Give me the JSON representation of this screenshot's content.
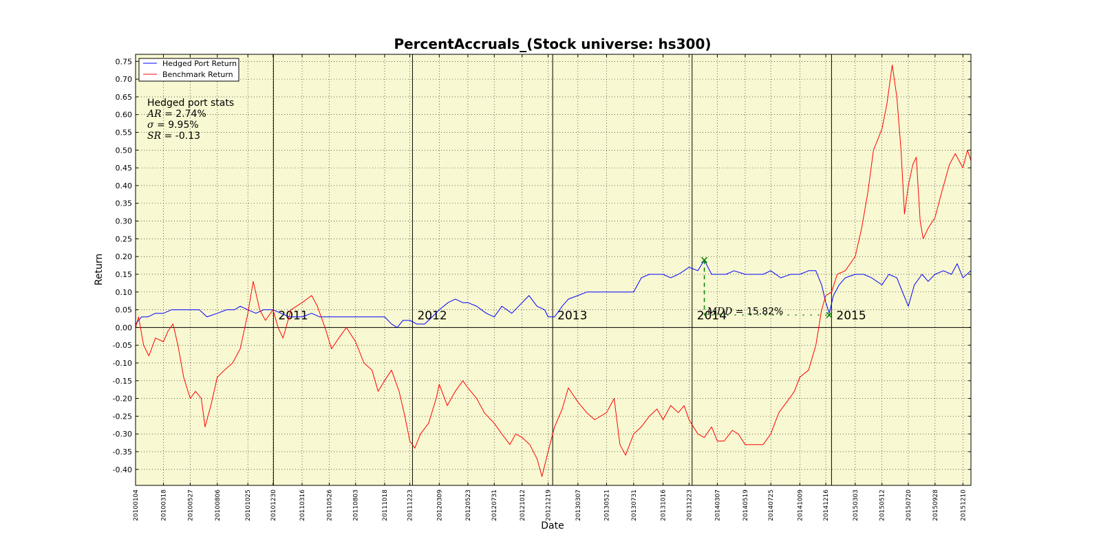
{
  "colors": {
    "plot_bg": "#f8f8d2",
    "hedged": "#0000ff",
    "benchmark": "#ff0000",
    "mdd": "#008000",
    "grid": "#000000"
  },
  "chart_data": {
    "type": "line",
    "title": "PercentAccruals_(Stock universe: hs300)",
    "xlabel": "Date",
    "ylabel": "Return",
    "grid": true,
    "legend_position": "top-left",
    "x_range": [
      "2010-01-04",
      "2015-12-31"
    ],
    "ylim": [
      -0.445,
      0.77
    ],
    "y_ticks": [
      "0.75",
      "0.70",
      "0.65",
      "0.60",
      "0.55",
      "0.50",
      "0.45",
      "0.40",
      "0.35",
      "0.30",
      "0.25",
      "0.20",
      "0.15",
      "0.10",
      "0.05",
      "0.00",
      "-0.05",
      "-0.10",
      "-0.15",
      "-0.20",
      "-0.25",
      "-0.30",
      "-0.35",
      "-0.40"
    ],
    "x_ticks": [
      "20100104",
      "20100318",
      "20100527",
      "20100806",
      "20101025",
      "20101230",
      "20110316",
      "20110526",
      "20110803",
      "20111018",
      "20111223",
      "20120309",
      "20120523",
      "20120731",
      "20121012",
      "20121219",
      "20130307",
      "20130521",
      "20130731",
      "20131016",
      "20131223",
      "20140307",
      "20140519",
      "20140725",
      "20141009",
      "20141216",
      "20150303",
      "20150512",
      "20150720",
      "20150928",
      "20151210"
    ],
    "year_markers": [
      {
        "date": "2010-12-31",
        "label": "2011"
      },
      {
        "date": "2011-12-30",
        "label": "2012"
      },
      {
        "date": "2012-12-31",
        "label": "2013"
      },
      {
        "date": "2013-12-31",
        "label": "2014"
      },
      {
        "date": "2014-12-31",
        "label": "2015"
      }
    ],
    "series": [
      {
        "name": "Hedged Port Return",
        "color": "#0000ff",
        "points": [
          [
            "2010-01-04",
            0.01
          ],
          [
            "2010-01-20",
            0.03
          ],
          [
            "2010-02-05",
            0.03
          ],
          [
            "2010-02-25",
            0.04
          ],
          [
            "2010-03-18",
            0.04
          ],
          [
            "2010-04-08",
            0.05
          ],
          [
            "2010-04-28",
            0.05
          ],
          [
            "2010-05-27",
            0.05
          ],
          [
            "2010-06-20",
            0.05
          ],
          [
            "2010-07-10",
            0.03
          ],
          [
            "2010-08-06",
            0.04
          ],
          [
            "2010-08-30",
            0.05
          ],
          [
            "2010-09-20",
            0.05
          ],
          [
            "2010-10-05",
            0.06
          ],
          [
            "2010-10-25",
            0.05
          ],
          [
            "2010-11-15",
            0.04
          ],
          [
            "2010-12-05",
            0.05
          ],
          [
            "2010-12-30",
            0.05
          ],
          [
            "2011-01-20",
            0.04
          ],
          [
            "2011-02-10",
            0.03
          ],
          [
            "2011-03-16",
            0.03
          ],
          [
            "2011-04-10",
            0.04
          ],
          [
            "2011-05-01",
            0.03
          ],
          [
            "2011-05-26",
            0.03
          ],
          [
            "2011-06-20",
            0.03
          ],
          [
            "2011-07-10",
            0.03
          ],
          [
            "2011-08-03",
            0.03
          ],
          [
            "2011-08-30",
            0.03
          ],
          [
            "2011-09-20",
            0.03
          ],
          [
            "2011-10-18",
            0.03
          ],
          [
            "2011-11-05",
            0.01
          ],
          [
            "2011-11-20",
            0.0
          ],
          [
            "2011-12-05",
            0.02
          ],
          [
            "2011-12-23",
            0.02
          ],
          [
            "2012-01-10",
            0.01
          ],
          [
            "2012-01-31",
            0.01
          ],
          [
            "2012-02-20",
            0.03
          ],
          [
            "2012-03-09",
            0.05
          ],
          [
            "2012-04-01",
            0.07
          ],
          [
            "2012-04-20",
            0.08
          ],
          [
            "2012-05-10",
            0.07
          ],
          [
            "2012-05-23",
            0.07
          ],
          [
            "2012-06-15",
            0.06
          ],
          [
            "2012-07-10",
            0.04
          ],
          [
            "2012-07-31",
            0.03
          ],
          [
            "2012-08-20",
            0.06
          ],
          [
            "2012-09-15",
            0.04
          ],
          [
            "2012-10-12",
            0.07
          ],
          [
            "2012-10-30",
            0.09
          ],
          [
            "2012-11-20",
            0.06
          ],
          [
            "2012-12-10",
            0.05
          ],
          [
            "2012-12-19",
            0.03
          ],
          [
            "2013-01-05",
            0.03
          ],
          [
            "2013-01-25",
            0.06
          ],
          [
            "2013-02-10",
            0.08
          ],
          [
            "2013-03-07",
            0.09
          ],
          [
            "2013-03-30",
            0.1
          ],
          [
            "2013-04-20",
            0.1
          ],
          [
            "2013-05-21",
            0.1
          ],
          [
            "2013-06-15",
            0.1
          ],
          [
            "2013-07-05",
            0.1
          ],
          [
            "2013-07-31",
            0.1
          ],
          [
            "2013-08-20",
            0.14
          ],
          [
            "2013-09-10",
            0.15
          ],
          [
            "2013-09-30",
            0.15
          ],
          [
            "2013-10-16",
            0.15
          ],
          [
            "2013-11-05",
            0.14
          ],
          [
            "2013-11-25",
            0.15
          ],
          [
            "2013-12-10",
            0.16
          ],
          [
            "2013-12-23",
            0.17
          ],
          [
            "2014-01-15",
            0.16
          ],
          [
            "2014-02-01",
            0.19
          ],
          [
            "2014-02-20",
            0.15
          ],
          [
            "2014-03-07",
            0.15
          ],
          [
            "2014-03-30",
            0.15
          ],
          [
            "2014-04-20",
            0.16
          ],
          [
            "2014-05-19",
            0.15
          ],
          [
            "2014-06-10",
            0.15
          ],
          [
            "2014-07-05",
            0.15
          ],
          [
            "2014-07-25",
            0.16
          ],
          [
            "2014-08-20",
            0.14
          ],
          [
            "2014-09-15",
            0.15
          ],
          [
            "2014-10-09",
            0.15
          ],
          [
            "2014-11-01",
            0.16
          ],
          [
            "2014-11-20",
            0.16
          ],
          [
            "2014-12-05",
            0.12
          ],
          [
            "2014-12-16",
            0.07
          ],
          [
            "2014-12-25",
            0.04
          ],
          [
            "2015-01-05",
            0.09
          ],
          [
            "2015-01-20",
            0.12
          ],
          [
            "2015-02-05",
            0.14
          ],
          [
            "2015-03-03",
            0.15
          ],
          [
            "2015-03-25",
            0.15
          ],
          [
            "2015-04-15",
            0.14
          ],
          [
            "2015-05-12",
            0.12
          ],
          [
            "2015-05-30",
            0.15
          ],
          [
            "2015-06-20",
            0.14
          ],
          [
            "2015-07-05",
            0.1
          ],
          [
            "2015-07-20",
            0.06
          ],
          [
            "2015-08-05",
            0.12
          ],
          [
            "2015-08-25",
            0.15
          ],
          [
            "2015-09-10",
            0.13
          ],
          [
            "2015-09-28",
            0.15
          ],
          [
            "2015-10-20",
            0.16
          ],
          [
            "2015-11-10",
            0.15
          ],
          [
            "2015-11-25",
            0.18
          ],
          [
            "2015-12-10",
            0.14
          ],
          [
            "2015-12-31",
            0.16
          ]
        ]
      },
      {
        "name": "Benchmark Return",
        "color": "#ff0000",
        "points": [
          [
            "2010-01-04",
            0.0
          ],
          [
            "2010-01-12",
            0.03
          ],
          [
            "2010-01-25",
            -0.05
          ],
          [
            "2010-02-08",
            -0.08
          ],
          [
            "2010-02-25",
            -0.03
          ],
          [
            "2010-03-18",
            -0.04
          ],
          [
            "2010-03-30",
            -0.01
          ],
          [
            "2010-04-12",
            0.01
          ],
          [
            "2010-04-25",
            -0.05
          ],
          [
            "2010-05-10",
            -0.14
          ],
          [
            "2010-05-27",
            -0.2
          ],
          [
            "2010-06-10",
            -0.18
          ],
          [
            "2010-06-25",
            -0.2
          ],
          [
            "2010-07-05",
            -0.28
          ],
          [
            "2010-07-20",
            -0.22
          ],
          [
            "2010-08-06",
            -0.14
          ],
          [
            "2010-08-25",
            -0.12
          ],
          [
            "2010-09-15",
            -0.1
          ],
          [
            "2010-10-05",
            -0.06
          ],
          [
            "2010-10-25",
            0.04
          ],
          [
            "2010-11-08",
            0.13
          ],
          [
            "2010-11-25",
            0.05
          ],
          [
            "2010-12-10",
            0.02
          ],
          [
            "2010-12-30",
            0.05
          ],
          [
            "2011-01-12",
            0.0
          ],
          [
            "2011-01-25",
            -0.03
          ],
          [
            "2011-02-15",
            0.05
          ],
          [
            "2011-03-16",
            0.07
          ],
          [
            "2011-04-10",
            0.09
          ],
          [
            "2011-04-25",
            0.06
          ],
          [
            "2011-05-15",
            0.0
          ],
          [
            "2011-06-01",
            -0.06
          ],
          [
            "2011-06-20",
            -0.03
          ],
          [
            "2011-07-10",
            0.0
          ],
          [
            "2011-08-03",
            -0.04
          ],
          [
            "2011-08-25",
            -0.1
          ],
          [
            "2011-09-15",
            -0.12
          ],
          [
            "2011-10-01",
            -0.18
          ],
          [
            "2011-10-18",
            -0.15
          ],
          [
            "2011-11-05",
            -0.12
          ],
          [
            "2011-11-25",
            -0.18
          ],
          [
            "2011-12-10",
            -0.25
          ],
          [
            "2011-12-23",
            -0.32
          ],
          [
            "2012-01-05",
            -0.34
          ],
          [
            "2012-01-20",
            -0.3
          ],
          [
            "2012-02-10",
            -0.27
          ],
          [
            "2012-03-01",
            -0.2
          ],
          [
            "2012-03-09",
            -0.16
          ],
          [
            "2012-03-30",
            -0.22
          ],
          [
            "2012-04-20",
            -0.18
          ],
          [
            "2012-05-10",
            -0.15
          ],
          [
            "2012-05-23",
            -0.17
          ],
          [
            "2012-06-15",
            -0.2
          ],
          [
            "2012-07-05",
            -0.24
          ],
          [
            "2012-07-31",
            -0.27
          ],
          [
            "2012-08-20",
            -0.3
          ],
          [
            "2012-09-10",
            -0.33
          ],
          [
            "2012-09-25",
            -0.3
          ],
          [
            "2012-10-12",
            -0.31
          ],
          [
            "2012-11-01",
            -0.33
          ],
          [
            "2012-11-20",
            -0.37
          ],
          [
            "2012-12-03",
            -0.42
          ],
          [
            "2012-12-19",
            -0.35
          ],
          [
            "2013-01-05",
            -0.28
          ],
          [
            "2013-01-25",
            -0.23
          ],
          [
            "2013-02-10",
            -0.17
          ],
          [
            "2013-03-07",
            -0.21
          ],
          [
            "2013-03-30",
            -0.24
          ],
          [
            "2013-04-20",
            -0.26
          ],
          [
            "2013-05-21",
            -0.24
          ],
          [
            "2013-06-10",
            -0.2
          ],
          [
            "2013-06-25",
            -0.33
          ],
          [
            "2013-07-10",
            -0.36
          ],
          [
            "2013-07-31",
            -0.3
          ],
          [
            "2013-08-20",
            -0.28
          ],
          [
            "2013-09-10",
            -0.25
          ],
          [
            "2013-09-30",
            -0.23
          ],
          [
            "2013-10-16",
            -0.26
          ],
          [
            "2013-11-05",
            -0.22
          ],
          [
            "2013-11-25",
            -0.24
          ],
          [
            "2013-12-10",
            -0.22
          ],
          [
            "2013-12-23",
            -0.26
          ],
          [
            "2014-01-15",
            -0.3
          ],
          [
            "2014-02-01",
            -0.31
          ],
          [
            "2014-02-20",
            -0.28
          ],
          [
            "2014-03-07",
            -0.32
          ],
          [
            "2014-03-25",
            -0.32
          ],
          [
            "2014-04-15",
            -0.29
          ],
          [
            "2014-05-01",
            -0.3
          ],
          [
            "2014-05-19",
            -0.33
          ],
          [
            "2014-06-10",
            -0.33
          ],
          [
            "2014-07-05",
            -0.33
          ],
          [
            "2014-07-25",
            -0.3
          ],
          [
            "2014-08-15",
            -0.24
          ],
          [
            "2014-09-05",
            -0.21
          ],
          [
            "2014-09-25",
            -0.18
          ],
          [
            "2014-10-09",
            -0.14
          ],
          [
            "2014-11-01",
            -0.12
          ],
          [
            "2014-11-20",
            -0.05
          ],
          [
            "2014-12-05",
            0.05
          ],
          [
            "2014-12-16",
            0.09
          ],
          [
            "2014-12-31",
            0.1
          ],
          [
            "2015-01-15",
            0.15
          ],
          [
            "2015-02-05",
            0.16
          ],
          [
            "2015-03-03",
            0.2
          ],
          [
            "2015-03-20",
            0.28
          ],
          [
            "2015-04-05",
            0.38
          ],
          [
            "2015-04-20",
            0.5
          ],
          [
            "2015-05-12",
            0.56
          ],
          [
            "2015-05-25",
            0.63
          ],
          [
            "2015-06-08",
            0.74
          ],
          [
            "2015-06-20",
            0.65
          ],
          [
            "2015-07-01",
            0.5
          ],
          [
            "2015-07-10",
            0.32
          ],
          [
            "2015-07-20",
            0.4
          ],
          [
            "2015-08-01",
            0.46
          ],
          [
            "2015-08-10",
            0.48
          ],
          [
            "2015-08-20",
            0.3
          ],
          [
            "2015-08-28",
            0.25
          ],
          [
            "2015-09-10",
            0.28
          ],
          [
            "2015-09-28",
            0.31
          ],
          [
            "2015-10-15",
            0.38
          ],
          [
            "2015-11-05",
            0.46
          ],
          [
            "2015-11-20",
            0.49
          ],
          [
            "2015-12-10",
            0.45
          ],
          [
            "2015-12-22",
            0.5
          ],
          [
            "2015-12-31",
            0.47
          ]
        ]
      }
    ]
  },
  "stats": {
    "heading": "Hedged port stats",
    "rows": [
      {
        "symbol": "AR",
        "value": "2.74%"
      },
      {
        "symbol": "σ",
        "value": "9.95%"
      },
      {
        "symbol": "SR",
        "value": "-0.13"
      }
    ]
  },
  "max_drawdown": {
    "symbol": "MDD",
    "value": "15.82%",
    "peak": {
      "date": "2014-02-01",
      "value": 0.19
    },
    "trough": {
      "date": "2014-12-25",
      "value": 0.035
    }
  }
}
